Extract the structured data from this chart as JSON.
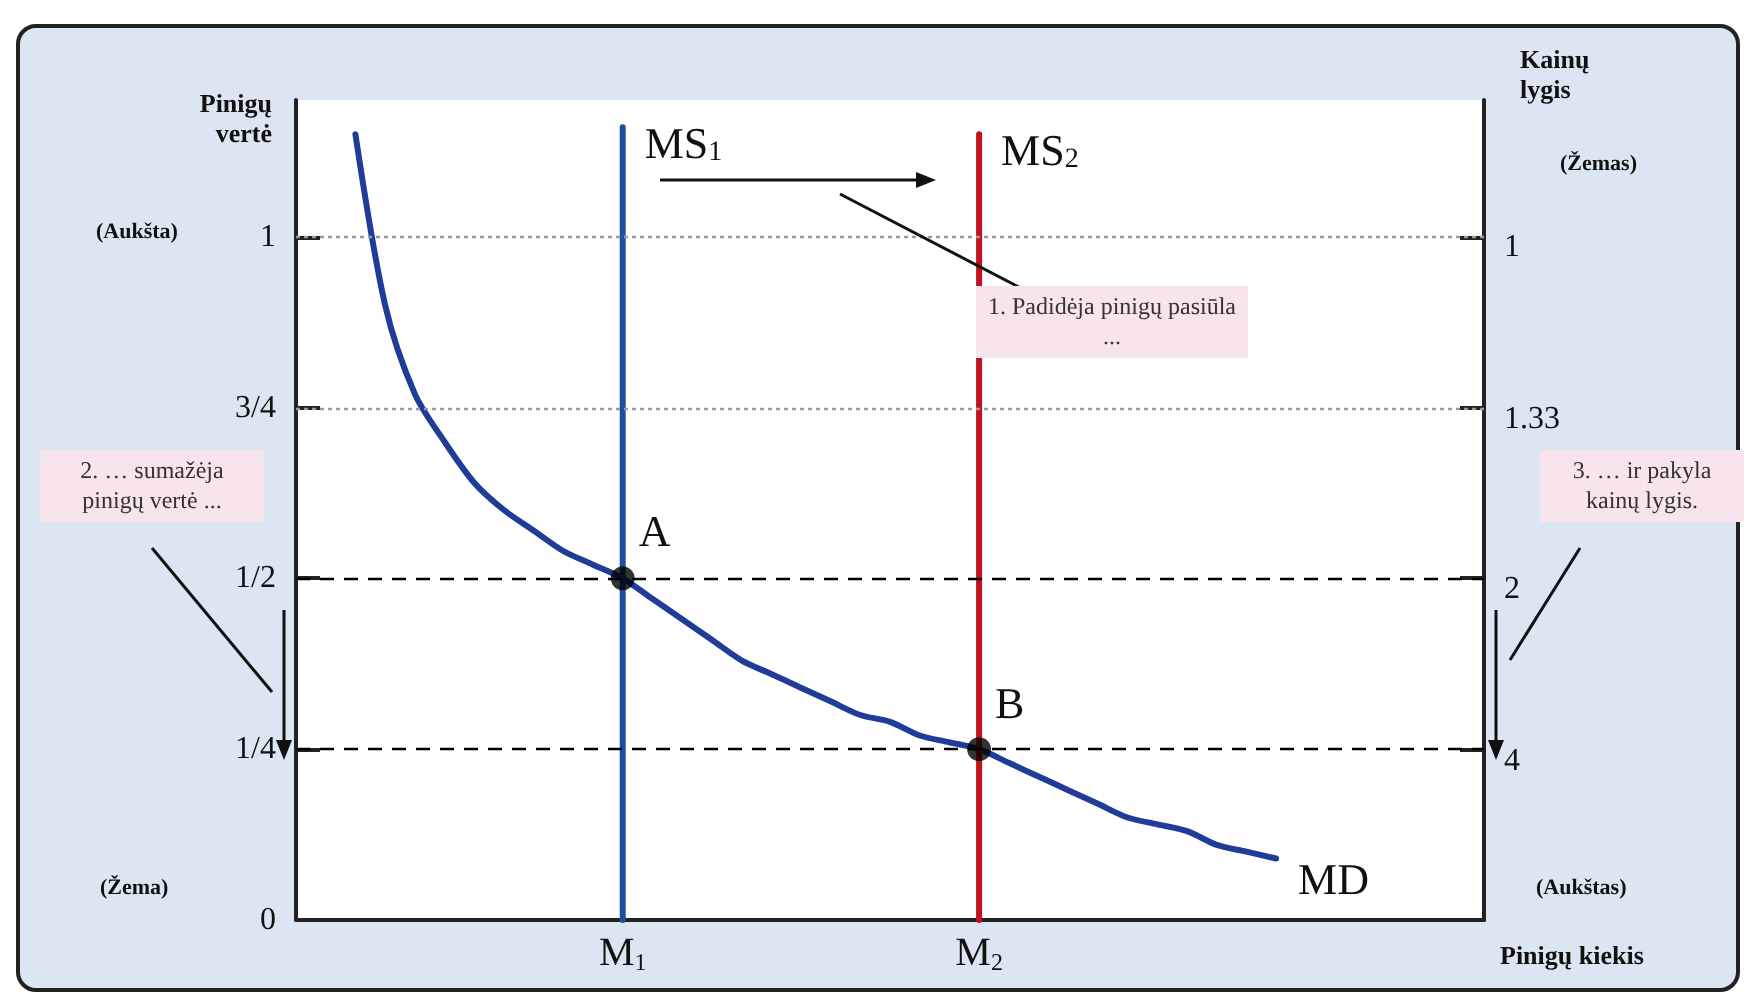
{
  "chart_data": {
    "type": "line",
    "xlabel": "Pinigų kiekis",
    "ylabel": "Pinigų vertė",
    "y2label": "Kainų lygis",
    "categories": [
      null,
      null,
      null,
      null,
      null,
      null,
      null,
      null,
      null,
      null,
      null,
      "M$_{1}$",
      null,
      null,
      null,
      null,
      null,
      null,
      null,
      null,
      null,
      null,
      null,
      "M$_{2}$",
      null,
      null,
      null,
      null,
      null,
      null,
      null,
      null,
      null,
      null,
      null,
      null,
      null,
      null,
      null,
      null,
      null
    ],
    "ylim": [
      0,
      1.2
    ],
    "yticks": [
      0,
      {
        "value": 0.25,
        "label": "1/4"
      },
      {
        "value": 0.5,
        "label": "1/2"
      },
      {
        "value": 0.75,
        "label": "3/4"
      },
      1
    ],
    "grid": false,
    "legend": false,
    "marker": "none",
    "series": [
      {
        "name": "MD",
        "color": "#1f3c99",
        "values": [
          null,
          null,
          1.15,
          0.9,
          0.77,
          0.7,
          0.64,
          0.6,
          0.57,
          0.54,
          0.52,
          0.5,
          0.47,
          0.44,
          0.41,
          0.38,
          0.36,
          0.34,
          0.32,
          0.3,
          0.29,
          0.27,
          0.26,
          0.25,
          0.23,
          0.21,
          0.19,
          0.17,
          0.15,
          0.14,
          0.13,
          0.11,
          0.1,
          0.09,
          null,
          null,
          null,
          null,
          null,
          null,
          null
        ]
      },
      {
        "name": "MS$_{1}$",
        "color": "#1f4e9c",
        "x": [
          "M$_{1}$",
          "M$_{1}$"
        ],
        "values": [
          0,
          1.16
        ]
      },
      {
        "name": "MS$_{2}$",
        "color": "#c1121f",
        "x": [
          "M$_{2}$",
          "M$_{2}$"
        ],
        "values": [
          0,
          1.15
        ]
      },
      {
        "type": "scatter",
        "color": "#000000",
        "marker": "circle",
        "x": [
          "M$_{1}$",
          "M$_{2}$"
        ],
        "values": [
          0.5,
          0.25
        ]
      }
    ],
    "ref_lines": [
      {
        "axis": "y",
        "value": 1,
        "color": "#9a9a9a",
        "line_style": "dotted"
      },
      {
        "axis": "y",
        "value": 0.75,
        "color": "#9a9a9a",
        "line_style": "dotted"
      },
      {
        "axis": "y",
        "value": 0.5,
        "color": "#000000",
        "line_style": "dashed"
      },
      {
        "axis": "y",
        "value": 0.25,
        "color": "#000000",
        "line_style": "dashed"
      }
    ],
    "annotations": [
      "1. Padidėja pinigų pasiūla ...",
      "2. … sumažėja pinigų vertė ...",
      "3. … ir pakyla kainų lygis.",
      "(Aukšta)",
      "(Žema)",
      "(Žemas)",
      "(Aukštas)",
      {
        "text": "A",
        "x": "M$_{1}$",
        "y": 0.5
      },
      {
        "text": "B",
        "x": "M$_{2}$",
        "y": 0.25
      },
      "1",
      "1.33",
      "2",
      "4"
    ]
  }
}
